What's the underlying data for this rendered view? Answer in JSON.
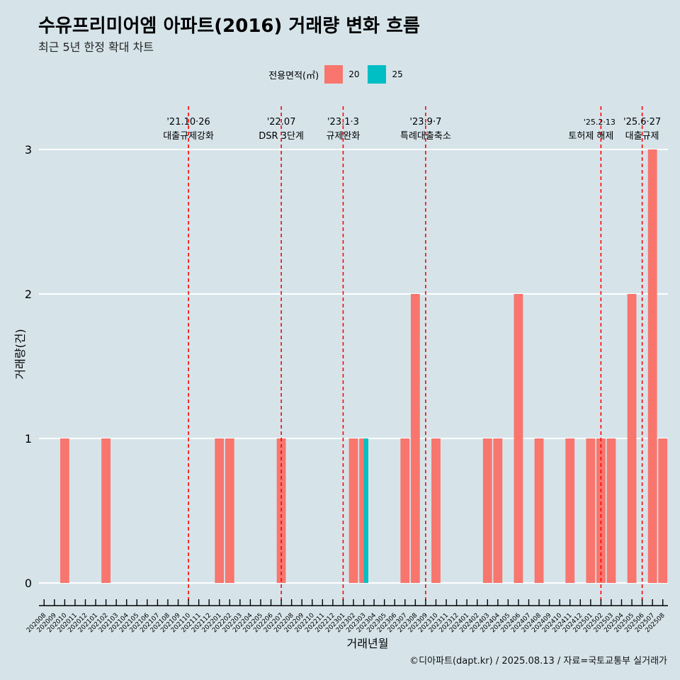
{
  "title": "수유프리미어엠 아파트(2016) 거래량 변화 흐름",
  "subtitle": "최근 5년 한정 확대 차트",
  "caption": "©디아파트(dapt.kr) / 2025.08.13 / 자료=국토교통부 실거래가",
  "legend": {
    "title": "전용면적(㎡)",
    "items": [
      {
        "label": "20",
        "color": "#F8766D"
      },
      {
        "label": "25",
        "color": "#00BFC4"
      }
    ]
  },
  "chart_data": {
    "type": "bar",
    "xlabel": "거래년월",
    "ylabel": "거래량(건)",
    "ylim": [
      0,
      3
    ],
    "yticks": [
      0,
      1,
      2,
      3
    ],
    "grid": true,
    "legend_position": "top",
    "categories": [
      "202008",
      "202009",
      "202010",
      "202011",
      "202012",
      "202101",
      "202102",
      "202103",
      "202104",
      "202105",
      "202106",
      "202107",
      "202108",
      "202109",
      "202110",
      "202111",
      "202112",
      "202201",
      "202202",
      "202203",
      "202204",
      "202205",
      "202206",
      "202207",
      "202208",
      "202209",
      "202210",
      "202211",
      "202212",
      "202301",
      "202302",
      "202303",
      "202304",
      "202305",
      "202306",
      "202307",
      "202308",
      "202309",
      "202310",
      "202311",
      "202312",
      "202401",
      "202402",
      "202403",
      "202404",
      "202405",
      "202406",
      "202407",
      "202408",
      "202409",
      "202410",
      "202411",
      "202412",
      "202501",
      "202502",
      "202503",
      "202504",
      "202505",
      "202506",
      "202507",
      "202508"
    ],
    "series": [
      {
        "name": "20",
        "color": "#F8766D",
        "values": [
          0,
          0,
          1,
          0,
          0,
          0,
          1,
          0,
          0,
          0,
          0,
          0,
          0,
          0,
          0,
          0,
          0,
          1,
          1,
          0,
          0,
          0,
          0,
          1,
          0,
          0,
          0,
          0,
          0,
          0,
          1,
          1,
          0,
          0,
          0,
          1,
          2,
          0,
          1,
          0,
          0,
          0,
          0,
          1,
          1,
          0,
          2,
          0,
          1,
          0,
          0,
          1,
          0,
          1,
          1,
          1,
          0,
          2,
          0,
          3,
          1
        ]
      },
      {
        "name": "25",
        "color": "#00BFC4",
        "values": [
          0,
          0,
          0,
          0,
          0,
          0,
          0,
          0,
          0,
          0,
          0,
          0,
          0,
          0,
          0,
          0,
          0,
          0,
          0,
          0,
          0,
          0,
          0,
          0,
          0,
          0,
          0,
          0,
          0,
          0,
          0,
          1,
          0,
          0,
          0,
          0,
          0,
          0,
          0,
          0,
          0,
          0,
          0,
          0,
          0,
          0,
          0,
          0,
          0,
          0,
          0,
          0,
          0,
          0,
          0,
          0,
          0,
          0,
          0,
          0,
          0
        ]
      }
    ],
    "events": [
      {
        "at": "202110",
        "date": "'21.10·26",
        "label": "대출규제강화"
      },
      {
        "at": "202207",
        "date": "'22.07",
        "label": "DSR 3단계"
      },
      {
        "at": "202301",
        "date": "'23.1·3",
        "label": "규제완화"
      },
      {
        "at": "202309",
        "date": "'23.9·7",
        "label": "특례대출축소"
      },
      {
        "at": "202502",
        "date": "'25.2·13",
        "label": "토허제 해제"
      },
      {
        "at": "202506",
        "date": "'25.6·27",
        "label": "대출규제"
      }
    ],
    "event_color": "#ff0000"
  }
}
